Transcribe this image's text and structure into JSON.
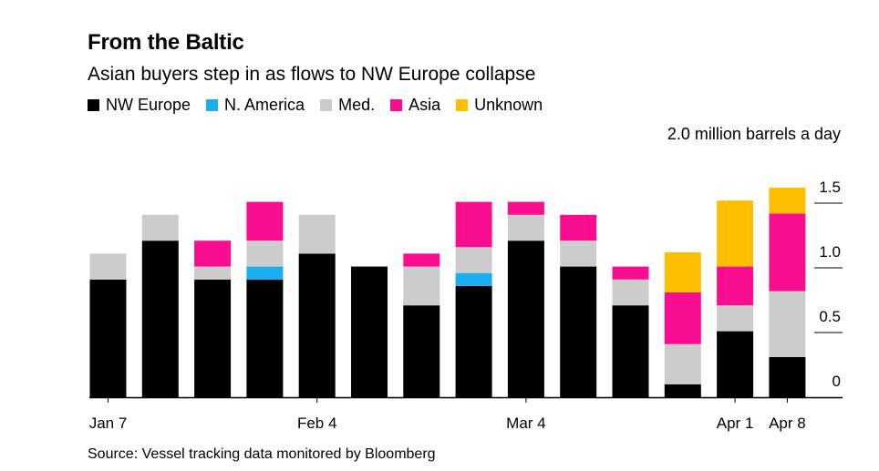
{
  "title": "From the Baltic",
  "subtitle": "Asian buyers step in as flows to NW Europe collapse",
  "unit_label": "2.0 million barrels a day",
  "source": "Source: Vessel tracking data monitored by Bloomberg",
  "chart_data": {
    "type": "bar",
    "stacked": true,
    "x_tick_labels": [
      {
        "label": "Jan 7",
        "index": 0
      },
      {
        "label": "Feb 4",
        "index": 4
      },
      {
        "label": "Mar 4",
        "index": 8
      },
      {
        "label": "Apr 1",
        "index": 12
      },
      {
        "label": "Apr 8",
        "index": 13
      }
    ],
    "ylim": [
      0,
      2.0
    ],
    "y_ticks": [
      0,
      0.5,
      1.0,
      1.5
    ],
    "y_tick_labels": [
      "0",
      "0.5",
      "1.0",
      "1.5"
    ],
    "series": [
      {
        "name": "NW Europe",
        "color": "#000000",
        "values": [
          0.91,
          1.21,
          0.91,
          0.91,
          1.11,
          1.01,
          0.71,
          0.86,
          1.21,
          1.01,
          0.71,
          0.1,
          0.51,
          0.31
        ]
      },
      {
        "name": "N. America",
        "color": "#1AADEF",
        "values": [
          0,
          0,
          0,
          0.1,
          0,
          0,
          0,
          0.1,
          0,
          0,
          0,
          0,
          0,
          0
        ]
      },
      {
        "name": "Med.",
        "color": "#CCCCCC",
        "values": [
          0.2,
          0.2,
          0.1,
          0.2,
          0.3,
          0,
          0.3,
          0.2,
          0.2,
          0.2,
          0.2,
          0.31,
          0.2,
          0.51
        ]
      },
      {
        "name": "Asia",
        "color": "#F90E92",
        "values": [
          0,
          0,
          0.2,
          0.3,
          0,
          0,
          0.1,
          0.35,
          0.1,
          0.2,
          0.1,
          0.4,
          0.3,
          0.6
        ]
      },
      {
        "name": "Unknown",
        "color": "#FFBF00",
        "values": [
          0,
          0,
          0,
          0,
          0,
          0,
          0,
          0,
          0,
          0,
          0,
          0.31,
          0.51,
          0.2
        ]
      }
    ],
    "legend_placement": "top-left"
  }
}
